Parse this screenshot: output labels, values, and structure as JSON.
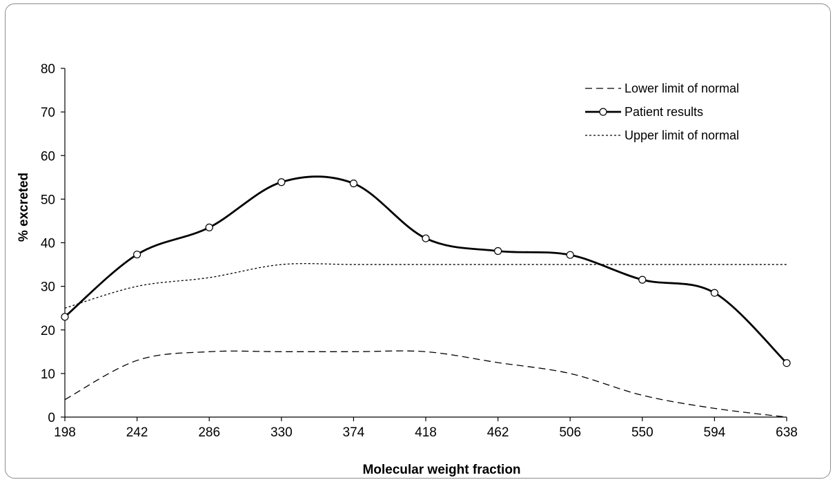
{
  "chart_data": {
    "type": "line",
    "title": "",
    "xlabel": "Molecular weight fraction",
    "ylabel": "% excreted",
    "x": [
      198,
      242,
      286,
      330,
      374,
      418,
      462,
      506,
      550,
      594,
      638
    ],
    "x_tick_labels": [
      "198",
      "242",
      "286",
      "330",
      "374",
      "418",
      "462",
      "506",
      "550",
      "594",
      "638"
    ],
    "ylim": [
      0,
      80
    ],
    "y_ticks": [
      0,
      10,
      20,
      30,
      40,
      50,
      60,
      70,
      80
    ],
    "y_tick_labels": [
      "0",
      "10",
      "20",
      "30",
      "40",
      "50",
      "60",
      "70",
      "80"
    ],
    "grid": false,
    "legend_position": "top-right",
    "series": [
      {
        "name": "Lower limit of normal",
        "style": "dashed",
        "color": "#000000",
        "values": [
          4,
          13,
          15,
          15,
          15,
          15,
          12.5,
          10,
          5,
          2,
          0
        ]
      },
      {
        "name": "Patient results",
        "style": "solid-markers",
        "color": "#000000",
        "values": [
          23,
          37.3,
          43.5,
          53.9,
          53.6,
          41,
          38.1,
          37.2,
          31.5,
          28.5,
          12.4
        ]
      },
      {
        "name": "Upper limit of normal",
        "style": "dotted",
        "color": "#000000",
        "values": [
          25,
          30,
          32,
          35,
          35,
          35,
          35,
          35,
          35,
          35,
          35
        ]
      }
    ]
  }
}
